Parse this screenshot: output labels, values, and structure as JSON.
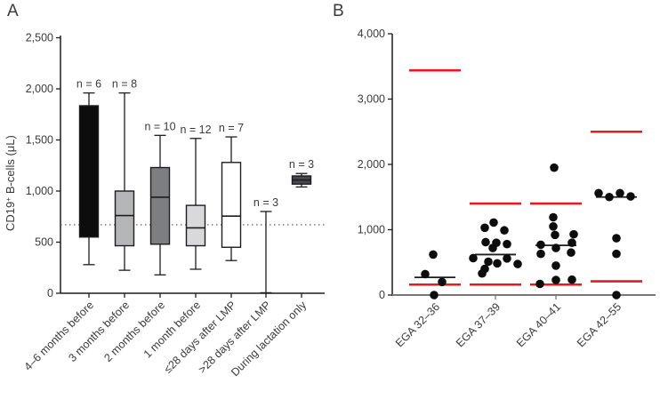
{
  "colors": {
    "axis": "#1d1d1f",
    "baseline_b": "#77787b",
    "red_line": "#e8191f",
    "dot": "#0d0d0d",
    "text": "#3a3a3c",
    "reference_dotted": "#4a4a4a"
  },
  "chart_data": [
    {
      "panel_label": "A",
      "type": "box",
      "ylabel": {
        "full": "CD19+ B-cells (μL)",
        "base": "CD19",
        "sup": "+",
        "rest": " B-cells (μL)"
      },
      "ylim": [
        0,
        2500
      ],
      "yticks": [
        {
          "v": 0,
          "label": "0"
        },
        {
          "v": 500,
          "label": "500"
        },
        {
          "v": 1000,
          "label": "1,000"
        },
        {
          "v": 1500,
          "label": "1,500"
        },
        {
          "v": 2000,
          "label": "2,000"
        },
        {
          "v": 2500,
          "label": "2,500"
        }
      ],
      "reference_line": {
        "v": 670,
        "style": "dotted"
      },
      "groups": [
        {
          "label": "4–6 months before",
          "n_label": "n = 6",
          "fill": "#0d0d0d",
          "whisker_low": 280,
          "q1": 550,
          "median": null,
          "q3": 1835,
          "whisker_high": 1960,
          "whisker_only": false
        },
        {
          "label": "3 months before",
          "n_label": "n = 8",
          "fill": "#b5b6b8",
          "whisker_low": 225,
          "q1": 465,
          "median": 760,
          "q3": 1000,
          "whisker_high": 1960,
          "whisker_only": false
        },
        {
          "label": "2 months before",
          "n_label": "n = 10",
          "fill": "#7d7e81",
          "whisker_low": 180,
          "q1": 480,
          "median": 940,
          "q3": 1230,
          "whisker_high": 1545,
          "whisker_only": false
        },
        {
          "label": "1 month before",
          "n_label": "n = 12",
          "fill": "#d9d9db",
          "whisker_low": 235,
          "q1": 465,
          "median": 640,
          "q3": 860,
          "whisker_high": 1515,
          "whisker_only": false
        },
        {
          "label": "≤28 days after LMP",
          "n_label": "n = 7",
          "fill": "#ffffff",
          "whisker_low": 320,
          "q1": 450,
          "median": 755,
          "q3": 1280,
          "whisker_high": 1530,
          "whisker_only": false
        },
        {
          "label": ">28 days after LMP",
          "n_label": "n = 3",
          "fill": null,
          "whisker_low": 5,
          "q1": null,
          "median": null,
          "q3": null,
          "whisker_high": 800,
          "whisker_only": true
        },
        {
          "label": "During lactation only",
          "n_label": "n = 3",
          "fill": "#48484a",
          "whisker_low": 1040,
          "q1": 1068,
          "median": 1108,
          "q3": 1148,
          "whisker_high": 1172,
          "whisker_only": false
        }
      ]
    },
    {
      "panel_label": "B",
      "type": "scatter",
      "ylim": [
        0,
        4000
      ],
      "yticks": [
        {
          "v": 0,
          "label": "0"
        },
        {
          "v": 1000,
          "label": "1,000"
        },
        {
          "v": 2000,
          "label": "2,000"
        },
        {
          "v": 3000,
          "label": "3,000"
        },
        {
          "v": 4000,
          "label": "4,000"
        }
      ],
      "groups": [
        {
          "label": "EGA 32–36",
          "median": 270,
          "red_lines": [
            3440,
            160
          ],
          "points": [
            {
              "v": 620,
              "dx": -2
            },
            {
              "v": 320,
              "dx": -11
            },
            {
              "v": 200,
              "dx": 8
            },
            {
              "v": 0,
              "dx": -1
            }
          ]
        },
        {
          "label": "EGA 37–39",
          "median": 620,
          "red_lines": [
            1400,
            160
          ],
          "points": [
            {
              "v": 1110,
              "dx": -2
            },
            {
              "v": 1030,
              "dx": -12
            },
            {
              "v": 990,
              "dx": 10
            },
            {
              "v": 810,
              "dx": -11
            },
            {
              "v": 800,
              "dx": 1
            },
            {
              "v": 780,
              "dx": 13
            },
            {
              "v": 720,
              "dx": -3
            },
            {
              "v": 565,
              "dx": -25
            },
            {
              "v": 560,
              "dx": 13
            },
            {
              "v": 510,
              "dx": -8
            },
            {
              "v": 485,
              "dx": 2
            },
            {
              "v": 475,
              "dx": 25
            },
            {
              "v": 400,
              "dx": -12
            },
            {
              "v": 330,
              "dx": -15
            }
          ]
        },
        {
          "label": "EGA 40–41",
          "median": 760,
          "red_lines": [
            1400,
            160
          ],
          "points": [
            {
              "v": 1950,
              "dx": -2
            },
            {
              "v": 1190,
              "dx": -3
            },
            {
              "v": 1050,
              "dx": -3
            },
            {
              "v": 930,
              "dx": 20
            },
            {
              "v": 920,
              "dx": -1
            },
            {
              "v": 800,
              "dx": 18
            },
            {
              "v": 770,
              "dx": -17
            },
            {
              "v": 720,
              "dx": 0
            },
            {
              "v": 650,
              "dx": 17
            },
            {
              "v": 630,
              "dx": -17
            },
            {
              "v": 450,
              "dx": 0
            },
            {
              "v": 235,
              "dx": 18
            },
            {
              "v": 230,
              "dx": 0
            },
            {
              "v": 170,
              "dx": -18
            }
          ]
        },
        {
          "label": "EGA 42–55",
          "median": 1500,
          "red_lines": [
            2500,
            210
          ],
          "points": [
            {
              "v": 1560,
              "dx": -20
            },
            {
              "v": 1500,
              "dx": -8
            },
            {
              "v": 1560,
              "dx": 4
            },
            {
              "v": 1510,
              "dx": 16
            },
            {
              "v": 870,
              "dx": 0
            },
            {
              "v": 630,
              "dx": 0
            },
            {
              "v": 0,
              "dx": 0
            }
          ]
        }
      ]
    }
  ]
}
